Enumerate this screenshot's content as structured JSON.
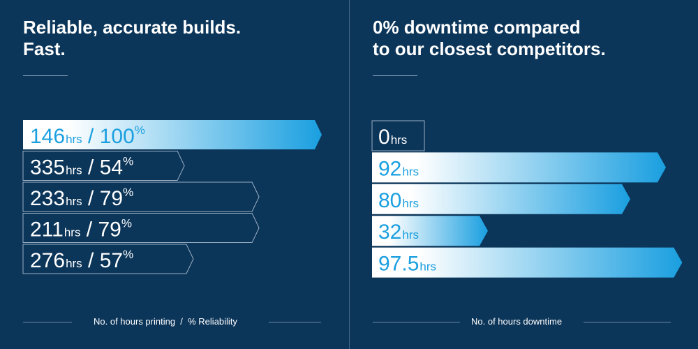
{
  "colors": {
    "background": "#0b3559",
    "bar_start": "#ffffff",
    "bar_end": "#1a9fe0",
    "text_on_light": "#1a9fe0",
    "outline": "#9bb0c4"
  },
  "chart_data": [
    {
      "type": "bar",
      "title": "Reliable, accurate builds.\nFast.",
      "footer_label": "No. of hours printing  /  % Reliability",
      "xlabel": "No. of hours printing / % Reliability",
      "ylabel": "",
      "units": {
        "hours": "hrs",
        "percent": "%"
      },
      "separator": "/",
      "series": [
        {
          "name": "hours",
          "values": [
            146,
            335,
            233,
            211,
            276
          ]
        },
        {
          "name": "reliability",
          "values": [
            100,
            54,
            79,
            79,
            57
          ]
        }
      ],
      "highlight_index": 0
    },
    {
      "type": "bar",
      "title": "0% downtime compared\nto our closest competitors.",
      "footer_label": "No. of hours downtime",
      "xlabel": "No. of hours downtime",
      "ylabel": "",
      "units": {
        "hours": "hrs"
      },
      "series": [
        {
          "name": "downtime",
          "values": [
            0,
            92,
            80,
            32,
            97.5
          ]
        }
      ],
      "highlight_index": 0
    }
  ]
}
